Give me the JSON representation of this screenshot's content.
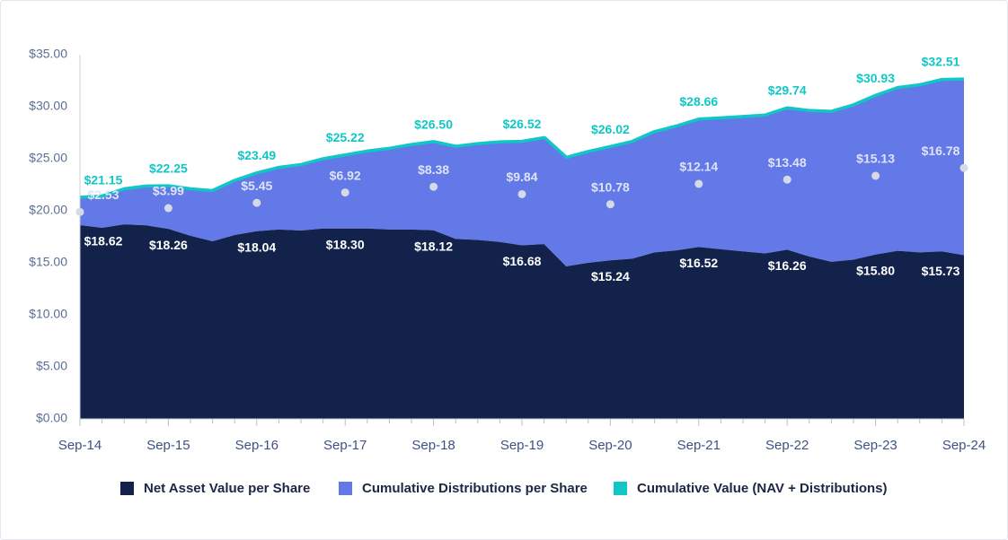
{
  "chart_data": {
    "type": "area",
    "stacked": true,
    "categories": [
      "Sep-14",
      null,
      null,
      null,
      "Sep-15",
      null,
      null,
      null,
      "Sep-16",
      null,
      null,
      null,
      "Sep-17",
      null,
      null,
      null,
      "Sep-18",
      null,
      null,
      null,
      "Sep-19",
      null,
      null,
      null,
      "Sep-20",
      null,
      null,
      null,
      "Sep-21",
      null,
      null,
      null,
      "Sep-22",
      null,
      null,
      null,
      "Sep-23",
      null,
      null,
      null,
      "Sep-24"
    ],
    "ylim": [
      0,
      35
    ],
    "yticks": [
      {
        "value": 0,
        "label": "$0.00"
      },
      {
        "value": 5,
        "label": "$5.00"
      },
      {
        "value": 10,
        "label": "$10.00"
      },
      {
        "value": 15,
        "label": "$15.00"
      },
      {
        "value": 20,
        "label": "$20.00"
      },
      {
        "value": 25,
        "label": "$25.00"
      },
      {
        "value": 30,
        "label": "$30.00"
      },
      {
        "value": 35,
        "label": "$35.00"
      }
    ],
    "series": [
      {
        "name": "Net Asset Value per Share",
        "color": "#13224a",
        "values": [
          18.62,
          18.36,
          18.7,
          18.6,
          18.26,
          17.6,
          17.07,
          17.67,
          18.04,
          18.2,
          18.1,
          18.3,
          18.3,
          18.3,
          18.2,
          18.2,
          18.12,
          17.3,
          17.2,
          17.0,
          16.68,
          16.8,
          14.66,
          15.0,
          15.24,
          15.4,
          16.0,
          16.2,
          16.52,
          16.3,
          16.1,
          15.9,
          16.26,
          15.6,
          15.1,
          15.3,
          15.8,
          16.15,
          16.0,
          16.1,
          15.73
        ],
        "value_labels": [
          "$18.62",
          null,
          null,
          null,
          "$18.26",
          null,
          null,
          null,
          "$18.04",
          null,
          null,
          null,
          "$18.30",
          null,
          null,
          null,
          "$18.12",
          null,
          null,
          null,
          "$16.68",
          null,
          null,
          null,
          "$15.24",
          null,
          null,
          null,
          "$16.52",
          null,
          null,
          null,
          "$16.26",
          null,
          null,
          null,
          "$15.80",
          null,
          null,
          null,
          "$15.73"
        ]
      },
      {
        "name": "Cumulative Distributions per Share",
        "color": "#6379e8",
        "values": [
          2.53,
          2.9,
          3.26,
          3.63,
          3.99,
          4.36,
          4.72,
          5.09,
          5.45,
          5.82,
          6.19,
          6.55,
          6.92,
          7.29,
          7.65,
          8.02,
          8.38,
          8.75,
          9.11,
          9.48,
          9.84,
          10.08,
          10.31,
          10.55,
          10.78,
          11.12,
          11.46,
          11.8,
          12.14,
          12.48,
          12.81,
          13.15,
          13.48,
          13.89,
          14.31,
          14.72,
          15.13,
          15.54,
          15.96,
          16.37,
          16.78
        ],
        "value_labels": [
          "$2.53",
          null,
          null,
          null,
          "$3.99",
          null,
          null,
          null,
          "$5.45",
          null,
          null,
          null,
          "$6.92",
          null,
          null,
          null,
          "$8.38",
          null,
          null,
          null,
          "$9.84",
          null,
          null,
          null,
          "$10.78",
          null,
          null,
          null,
          "$12.14",
          null,
          null,
          null,
          "$13.48",
          null,
          null,
          null,
          "$15.13",
          null,
          null,
          null,
          "$16.78"
        ]
      },
      {
        "name": "Cumulative Value (NAV + Distributions)",
        "color": "#11c6c6",
        "type": "line",
        "values": [
          21.15,
          21.26,
          21.96,
          22.23,
          22.25,
          21.96,
          21.79,
          22.76,
          23.49,
          24.02,
          24.29,
          24.85,
          25.22,
          25.59,
          25.85,
          26.22,
          26.5,
          26.05,
          26.31,
          26.48,
          26.52,
          26.88,
          24.97,
          25.55,
          26.02,
          26.52,
          27.46,
          28.0,
          28.66,
          28.78,
          28.91,
          29.05,
          29.74,
          29.49,
          29.41,
          30.02,
          30.93,
          31.69,
          31.96,
          32.47,
          32.51
        ],
        "value_labels": [
          "$21.15",
          null,
          null,
          null,
          "$22.25",
          null,
          null,
          null,
          "$23.49",
          null,
          null,
          null,
          "$25.22",
          null,
          null,
          null,
          "$26.50",
          null,
          null,
          null,
          "$26.52",
          null,
          null,
          null,
          "$26.02",
          null,
          null,
          null,
          "$28.66",
          null,
          null,
          null,
          "$29.74",
          null,
          null,
          null,
          "$30.93",
          null,
          null,
          null,
          "$32.51"
        ]
      }
    ]
  }
}
